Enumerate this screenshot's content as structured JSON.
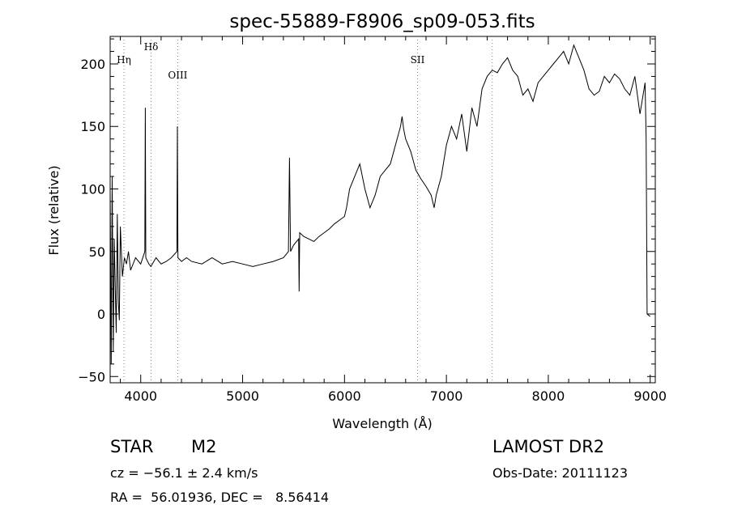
{
  "chart_data": {
    "type": "line",
    "title": "spec-55889-F8906_sp09-053.fits",
    "xlabel": "Wavelength (Å)",
    "ylabel": "Flux (relative)",
    "xlim": [
      3700,
      9050
    ],
    "ylim": [
      -55,
      222
    ],
    "x_ticks": [
      4000,
      5000,
      6000,
      7000,
      8000,
      9000
    ],
    "y_ticks": [
      -50,
      0,
      50,
      100,
      150,
      200
    ],
    "grid": false,
    "line_color": "#000000",
    "marker_color": "#e06060",
    "line_markers": [
      {
        "label": "Hη",
        "x": 3835
      },
      {
        "label": "Hδ",
        "x": 4102
      },
      {
        "label": "OIII",
        "x": 4363
      },
      {
        "label": "SII",
        "x": 6717
      },
      {
        "label": "",
        "x": 7450
      }
    ],
    "series": [
      {
        "x": [
          3700,
          3710,
          3720,
          3730,
          3740,
          3750,
          3760,
          3770,
          3780,
          3790,
          3800,
          3820,
          3840,
          3860,
          3880,
          3900,
          3950,
          4000,
          4040,
          4045,
          4050,
          4080,
          4100,
          4150,
          4200,
          4250,
          4300,
          4355,
          4360,
          4365,
          4400,
          4450,
          4500,
          4600,
          4700,
          4800,
          4900,
          5000,
          5100,
          5200,
          5300,
          5400,
          5450,
          5460,
          5470,
          5500,
          5550,
          5555,
          5560,
          5600,
          5650,
          5700,
          5750,
          5800,
          5850,
          5900,
          5950,
          6000,
          6020,
          6050,
          6100,
          6150,
          6200,
          6250,
          6300,
          6350,
          6400,
          6450,
          6500,
          6550,
          6565,
          6580,
          6600,
          6650,
          6700,
          6750,
          6800,
          6850,
          6880,
          6900,
          6950,
          7000,
          7050,
          7100,
          7150,
          7200,
          7250,
          7300,
          7350,
          7400,
          7450,
          7500,
          7550,
          7600,
          7650,
          7700,
          7750,
          7800,
          7850,
          7900,
          7950,
          8000,
          8050,
          8100,
          8150,
          8200,
          8250,
          8300,
          8350,
          8400,
          8450,
          8500,
          8550,
          8600,
          8650,
          8700,
          8750,
          8800,
          8850,
          8900,
          8950,
          8960,
          8970,
          9000
        ],
        "y": [
          100,
          -40,
          110,
          -30,
          60,
          20,
          -15,
          80,
          10,
          -5,
          70,
          30,
          45,
          40,
          50,
          35,
          45,
          40,
          50,
          165,
          45,
          40,
          38,
          45,
          40,
          42,
          45,
          50,
          150,
          45,
          42,
          45,
          42,
          40,
          45,
          40,
          42,
          40,
          38,
          40,
          42,
          45,
          50,
          125,
          50,
          55,
          60,
          18,
          65,
          62,
          60,
          58,
          62,
          65,
          68,
          72,
          75,
          78,
          85,
          100,
          110,
          120,
          100,
          85,
          95,
          110,
          115,
          120,
          135,
          150,
          158,
          148,
          140,
          130,
          115,
          108,
          102,
          95,
          85,
          95,
          110,
          135,
          150,
          140,
          160,
          130,
          165,
          150,
          180,
          190,
          195,
          193,
          200,
          205,
          195,
          190,
          175,
          180,
          170,
          185,
          190,
          195,
          200,
          205,
          210,
          200,
          215,
          205,
          195,
          180,
          175,
          178,
          190,
          185,
          192,
          188,
          180,
          175,
          190,
          160,
          185,
          140,
          0,
          -2
        ]
      }
    ]
  },
  "info": {
    "object_class": "STAR",
    "subclass": "M2",
    "survey": "LAMOST DR2",
    "cz": "cz = −56.1 ± 2.4 km/s",
    "obs_date": "Obs-Date: 20111123",
    "coords": "RA =  56.01936, DEC =   8.56414"
  }
}
